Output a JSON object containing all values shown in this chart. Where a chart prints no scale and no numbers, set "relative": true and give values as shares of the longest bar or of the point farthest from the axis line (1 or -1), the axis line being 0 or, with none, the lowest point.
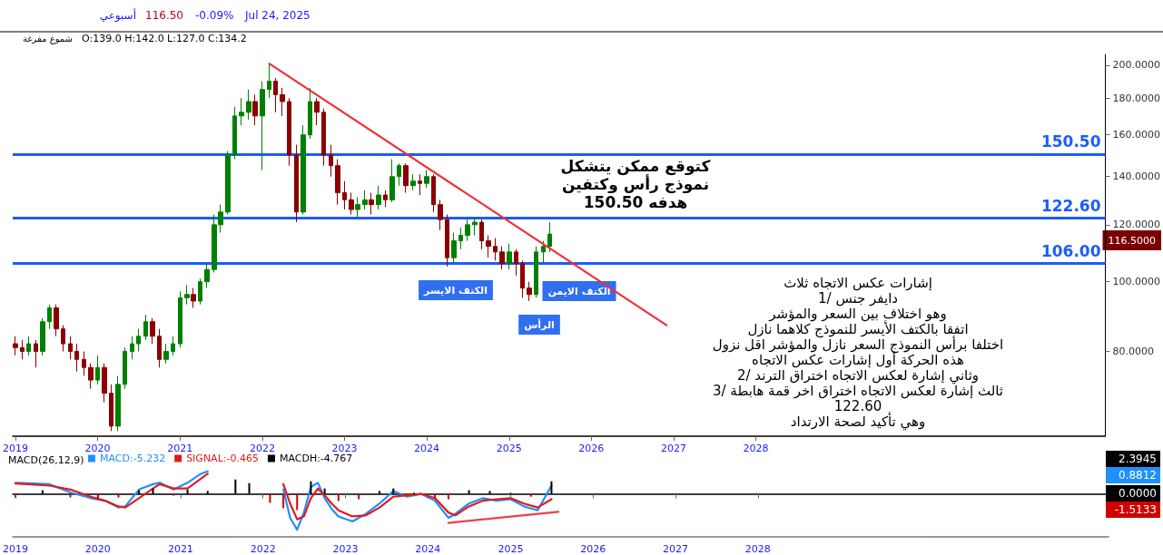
{
  "chart_data": [
    {
      "type": "candlestick",
      "log": "y",
      "ylim": [
        61,
        207
      ],
      "yticks": [
        {
          "value": 80,
          "label": "80.0000"
        },
        {
          "value": 100,
          "label": "100.0000"
        },
        {
          "value": 120,
          "label": "120.0000"
        },
        {
          "value": 140,
          "label": "140.0000"
        },
        {
          "value": 160,
          "label": "160.0000"
        },
        {
          "value": 180,
          "label": "180.0000"
        },
        {
          "value": 200,
          "label": "200.0000"
        }
      ],
      "xlim": [
        "2018-12-20",
        "2032-04-01"
      ],
      "xticks": [
        "2019",
        "2020",
        "2021",
        "2022",
        "2023",
        "2024",
        "2025",
        "2026",
        "2027",
        "2028"
      ],
      "series": [
        {
          "x": [
            "2019-01",
            "2019-02",
            "2019-03",
            "2019-04",
            "2019-05",
            "2019-06",
            "2019-07",
            "2019-08",
            "2019-09",
            "2019-10",
            "2019-11",
            "2019-12",
            "2020-01",
            "2020-02",
            "2020-03",
            "2020-04",
            "2020-05",
            "2020-06",
            "2020-07",
            "2020-08",
            "2020-09",
            "2020-10",
            "2020-11",
            "2020-12",
            "2021-01",
            "2021-02",
            "2021-03",
            "2021-04",
            "2021-05",
            "2021-06",
            "2021-07",
            "2021-08",
            "2021-09",
            "2021-10",
            "2021-11",
            "2021-12",
            "2022-01",
            "2022-02",
            "2022-03",
            "2022-04",
            "2022-05",
            "2022-06",
            "2022-07",
            "2022-08",
            "2022-09",
            "2022-10",
            "2022-11",
            "2022-12",
            "2023-01",
            "2023-02",
            "2023-03",
            "2023-04",
            "2023-05",
            "2023-06",
            "2023-07",
            "2023-08",
            "2023-09",
            "2023-10",
            "2023-11",
            "2023-12",
            "2024-01",
            "2024-02",
            "2024-03",
            "2024-04",
            "2024-05",
            "2024-06",
            "2024-07",
            "2024-08",
            "2024-09",
            "2024-10",
            "2024-11",
            "2024-12",
            "2025-01",
            "2025-02",
            "2025-03",
            "2025-04",
            "2025-05",
            "2025-06",
            "2025-07"
          ],
          "ohlc": [
            [
              82,
              84,
              79,
              81
            ],
            [
              81,
              83,
              78,
              80
            ],
            [
              80,
              84,
              79,
              82
            ],
            [
              82,
              83,
              76,
              80
            ],
            [
              80,
              89,
              79,
              88
            ],
            [
              88,
              93,
              86,
              92
            ],
            [
              92,
              93,
              84,
              86
            ],
            [
              86,
              87,
              80,
              82
            ],
            [
              82,
              84,
              78,
              80
            ],
            [
              80,
              82,
              75,
              78
            ],
            [
              78,
              80,
              74,
              76
            ],
            [
              76,
              77,
              71,
              73
            ],
            [
              73,
              79,
              72,
              76
            ],
            [
              76,
              77,
              68,
              70
            ],
            [
              70,
              72,
              62,
              63
            ],
            [
              63,
              74,
              62,
              72
            ],
            [
              72,
              81,
              71,
              80
            ],
            [
              80,
              84,
              78,
              82
            ],
            [
              82,
              86,
              80,
              84
            ],
            [
              84,
              90,
              83,
              88
            ],
            [
              88,
              89,
              82,
              84
            ],
            [
              84,
              86,
              76,
              78
            ],
            [
              78,
              82,
              77,
              80
            ],
            [
              80,
              84,
              79,
              82
            ],
            [
              82,
              97,
              81,
              95
            ],
            [
              95,
              99,
              93,
              96
            ],
            [
              96,
              98,
              92,
              94
            ],
            [
              94,
              101,
              93,
              100
            ],
            [
              100,
              106,
              98,
              104
            ],
            [
              104,
              124,
              103,
              120
            ],
            [
              120,
              128,
              117,
              125
            ],
            [
              125,
              152,
              124,
              150
            ],
            [
              150,
              175,
              148,
              170
            ],
            [
              170,
              180,
              165,
              172
            ],
            [
              172,
              185,
              168,
              178
            ],
            [
              178,
              182,
              165,
              170
            ],
            [
              170,
              190,
              143,
              185
            ],
            [
              185,
              201,
              180,
              190
            ],
            [
              190,
              192,
              172,
              182
            ],
            [
              182,
              186,
              170,
              178
            ],
            [
              178,
              180,
              145,
              150
            ],
            [
              150,
              155,
              121,
              125
            ],
            [
              125,
              165,
              124,
              160
            ],
            [
              160,
              186,
              158,
              178
            ],
            [
              178,
              180,
              165,
              172
            ],
            [
              172,
              174,
              145,
              150
            ],
            [
              150,
              155,
              140,
              145
            ],
            [
              145,
              148,
              128,
              133
            ],
            [
              133,
              138,
              126,
              130
            ],
            [
              130,
              133,
              124,
              126
            ],
            [
              126,
              131,
              123,
              128
            ],
            [
              128,
              134,
              126,
              130
            ],
            [
              130,
              133,
              124,
              128
            ],
            [
              128,
              136,
              126,
              132
            ],
            [
              132,
              134,
              127,
              130
            ],
            [
              130,
              148,
              129,
              140
            ],
            [
              140,
              146,
              136,
              145
            ],
            [
              145,
              146,
              133,
              136
            ],
            [
              136,
              141,
              134,
              138
            ],
            [
              138,
              141,
              132,
              137
            ],
            [
              137,
              143,
              135,
              140
            ],
            [
              140,
              141,
              125,
              128
            ],
            [
              128,
              130,
              118,
              122
            ],
            [
              122,
              124,
              105,
              108
            ],
            [
              108,
              117,
              106,
              114
            ],
            [
              114,
              119,
              111,
              116
            ],
            [
              116,
              122,
              114,
              120
            ],
            [
              120,
              123,
              116,
              121
            ],
            [
              121,
              122,
              111,
              114
            ],
            [
              114,
              116,
              108,
              112
            ],
            [
              112,
              115,
              107,
              110
            ],
            [
              110,
              112,
              104,
              106
            ],
            [
              106,
              113,
              104,
              110
            ],
            [
              110,
              111,
              102,
              106
            ],
            [
              106,
              107,
              95,
              98
            ],
            [
              98,
              100,
              94,
              96
            ],
            [
              96,
              112,
              95,
              110
            ],
            [
              110,
              114,
              106,
              112
            ],
            [
              112,
              121,
              110,
              116.5
            ]
          ],
          "colors": [
            "#8b0000",
            "#8b0000",
            "#008000",
            "#8b0000",
            "#008000",
            "#008000",
            "#8b0000",
            "#8b0000",
            "#8b0000",
            "#8b0000",
            "#8b0000",
            "#8b0000",
            "#008000",
            "#8b0000",
            "#8b0000",
            "#008000",
            "#008000",
            "#008000",
            "#008000",
            "#008000",
            "#8b0000",
            "#8b0000",
            "#008000",
            "#008000",
            "#008000",
            "#008000",
            "#8b0000",
            "#008000",
            "#008000",
            "#008000",
            "#008000",
            "#008000",
            "#008000",
            "#008000",
            "#008000",
            "#8b0000",
            "#008000",
            "#008000",
            "#8b0000",
            "#8b0000",
            "#8b0000",
            "#8b0000",
            "#008000",
            "#008000",
            "#8b0000",
            "#8b0000",
            "#8b0000",
            "#8b0000",
            "#8b0000",
            "#8b0000",
            "#008000",
            "#008000",
            "#8b0000",
            "#008000",
            "#8b0000",
            "#008000",
            "#008000",
            "#8b0000",
            "#008000",
            "#8b0000",
            "#008000",
            "#8b0000",
            "#8b0000",
            "#8b0000",
            "#008000",
            "#008000",
            "#008000",
            "#008000",
            "#8b0000",
            "#8b0000",
            "#8b0000",
            "#8b0000",
            "#008000",
            "#8b0000",
            "#8b0000",
            "#8b0000",
            "#008000",
            "#008000",
            "#008000"
          ]
        },
        {
          "type": "line",
          "color": "#f0303c",
          "x": [
            "2022-02",
            "2026-12"
          ],
          "values": [
            201,
            87
          ]
        }
      ],
      "ref_lines": [
        {
          "axis": "y",
          "value": 150.5,
          "label": "150.50",
          "color": "#1a5cff"
        },
        {
          "axis": "y",
          "value": 122.6,
          "label": "122.60",
          "color": "#1a5cff"
        },
        {
          "axis": "y",
          "value": 106,
          "label": "106.00",
          "color": "#1a5cff"
        }
      ],
      "annotations": [
        "أسبوعي",
        "116.50",
        "-0.09%",
        "Jul 24, 2025",
        "شموع مفرغة",
        "O:139.0 H:142.0 L:127.0 C:134.2",
        "كتوقع ممكن يتشكل\nنموذج رأس وكتفين\nهدفه 150.50",
        "إشارات عكس الاتجاه ثلاث\n1/ دايفر جنس\nوهو اختلاف بين السعر والمؤشر\nاتفقا بالكتف الأيسر للنموذج كلاهما نازل\nاختلفا برأس النموذج السعر نازل والمؤشر اقل نزول\nهذه الحركة أول إشارات عكس الاتجاه\n2/ وثاني إشارة لعكس الاتجاه اختراق الترند\n3/ ثالث إشارة لعكس الاتجاه اختراق اخر قمة هابطة\n122.60\nوهي تأكيد لصحة الارتداد",
        "الكتف الايسر",
        "الرأس",
        "الكتف الايمن",
        "116.5000"
      ]
    },
    {
      "type": "line",
      "title": "MACD(26,12,9)",
      "relative": true,
      "legend": "top left",
      "xlim": [
        "2018-12-20",
        "2032-04-01"
      ],
      "xticks": [
        "2019",
        "2020",
        "2021",
        "2022",
        "2023",
        "2024",
        "2025",
        "2026",
        "2027",
        "2028"
      ],
      "series": [
        {
          "name": "MACD:-5.232",
          "color": "#1e90ff",
          "x": [
            "2019-01",
            "2019-06",
            "2019-09",
            "2019-12",
            "2020-02",
            "2020-04",
            "2020-05",
            "2020-07",
            "2020-09",
            "2020-10",
            "2020-12",
            "2021-02",
            "2021-04",
            "2021-05",
            "2021-07",
            "2022-04",
            "2022-05",
            "2022-06",
            "2022-07",
            "2022-08",
            "2022-09",
            "2022-10",
            "2022-11",
            "2022-12",
            "2023-02",
            "2023-04",
            "2023-06",
            "2023-08",
            "2023-10",
            "2023-12",
            "2024-02",
            "2024-04",
            "2024-05",
            "2024-07",
            "2024-09",
            "2024-11",
            "2025-01",
            "2025-03",
            "2025-05",
            "2025-07"
          ],
          "values": [
            0.31,
            0.27,
            0.04,
            -0.12,
            -0.19,
            -0.38,
            -0.35,
            0.12,
            0.27,
            0.31,
            0.12,
            0.31,
            0.56,
            0.63,
            null,
            0.12,
            -0.67,
            -1,
            -0.52,
            0.19,
            0.31,
            -0.12,
            -0.42,
            -0.63,
            -0.77,
            -0.56,
            -0.27,
            0.08,
            -0.08,
            0,
            -0.19,
            -0.67,
            -0.56,
            -0.27,
            -0.12,
            -0.19,
            -0.15,
            -0.35,
            -0.46,
            0.23
          ]
        },
        {
          "name": "SIGNAL:-0.465",
          "color": "#e31a1c",
          "x": [
            "2019-01",
            "2019-06",
            "2019-09",
            "2019-12",
            "2020-02",
            "2020-04",
            "2020-05",
            "2020-07",
            "2020-09",
            "2020-10",
            "2020-12",
            "2021-02",
            "2021-04",
            "2021-05",
            "2021-07",
            "2022-04",
            "2022-05",
            "2022-06",
            "2022-07",
            "2022-08",
            "2022-09",
            "2022-10",
            "2022-11",
            "2022-12",
            "2023-02",
            "2023-04",
            "2023-06",
            "2023-08",
            "2023-10",
            "2023-12",
            "2024-02",
            "2024-04",
            "2024-05",
            "2024-07",
            "2024-09",
            "2024-11",
            "2025-01",
            "2025-03",
            "2025-05",
            "2025-07"
          ],
          "values": [
            0.29,
            0.23,
            0.12,
            -0.08,
            -0.19,
            -0.35,
            -0.38,
            -0.12,
            0.15,
            0.27,
            0.15,
            0.15,
            0.42,
            0.56,
            null,
            0.27,
            -0.27,
            -0.71,
            -0.63,
            -0.12,
            0.15,
            -0.04,
            -0.27,
            -0.46,
            -0.63,
            -0.6,
            -0.38,
            -0.08,
            -0.04,
            0,
            -0.12,
            -0.52,
            -0.6,
            -0.35,
            -0.19,
            -0.15,
            -0.12,
            -0.27,
            -0.38,
            -0.15
          ]
        },
        {
          "name": "MACDH:-4.767",
          "type": "bar",
          "color": "#000000",
          "x": [
            "2019-01",
            "2019-05",
            "2019-09",
            "2020-01",
            "2020-04",
            "2020-07",
            "2020-09",
            "2020-12",
            "2021-02",
            "2021-05",
            "2021-09",
            "2021-11",
            "2022-02",
            "2022-04",
            "2022-06",
            "2022-08",
            "2022-10",
            "2022-12",
            "2023-03",
            "2023-06",
            "2023-08",
            "2023-11",
            "2024-02",
            "2024-04",
            "2024-07",
            "2024-10",
            "2025-01",
            "2025-04",
            "2025-07"
          ],
          "values": [
            -0.1,
            0.1,
            -0.1,
            -0.15,
            -0.1,
            0.1,
            0.15,
            -0.05,
            0.12,
            0.08,
            0.4,
            0.3,
            -0.25,
            -0.4,
            -0.45,
            0.35,
            0.15,
            -0.2,
            -0.15,
            0.08,
            0.15,
            0.03,
            -0.12,
            -0.15,
            0.1,
            0.08,
            0.03,
            -0.08,
            0.35
          ],
          "colors": [
            "#cc0000",
            "#000000",
            "#cc0000",
            "#cc0000",
            "#cc0000",
            "#000000",
            "#000000",
            "#cc0000",
            "#000000",
            "#000000",
            "#000000",
            "#000000",
            "#cc0000",
            "#cc0000",
            "#cc0000",
            "#000000",
            "#000000",
            "#cc0000",
            "#cc0000",
            "#000000",
            "#000000",
            "#000000",
            "#cc0000",
            "#cc0000",
            "#000000",
            "#000000",
            "#000000",
            "#cc0000",
            "#000000"
          ]
        },
        {
          "type": "line",
          "color": "#f0404a",
          "x": [
            "2024-04",
            "2025-08"
          ],
          "values": [
            -0.81,
            -0.5
          ]
        }
      ],
      "annotations": [
        "2.3945",
        "0.8812",
        "0.0000",
        "-1.5133"
      ]
    }
  ]
}
